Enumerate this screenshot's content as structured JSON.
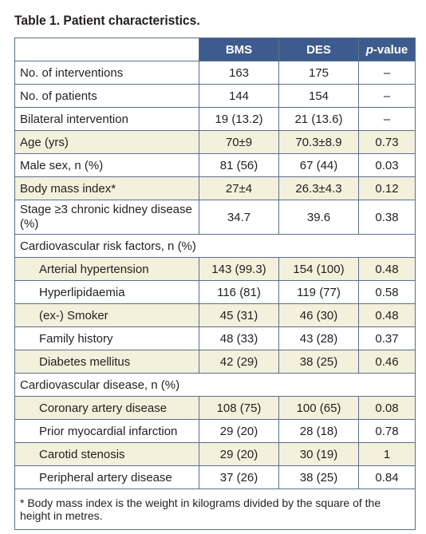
{
  "caption": "Table 1. Patient characteristics.",
  "columns": [
    "",
    "BMS",
    "DES",
    "p-value"
  ],
  "p_label_italic": "p",
  "p_label_rest": "-value",
  "rows": [
    {
      "label": "No. of interventions",
      "bms": "163",
      "des": "175",
      "p": "–"
    },
    {
      "label": "No. of patients",
      "bms": "144",
      "des": "154",
      "p": "–"
    },
    {
      "label": "Bilateral intervention",
      "bms": "19 (13.2)",
      "des": "21 (13.6)",
      "p": "–"
    },
    {
      "label": "Age (yrs)",
      "bms": "70±9",
      "des": "70.3±8.9",
      "p": "0.73"
    },
    {
      "label": "Male sex, n (%)",
      "bms": "81 (56)",
      "des": "67 (44)",
      "p": "0.03"
    },
    {
      "label": "Body mass index*",
      "bms": "27±4",
      "des": "26.3±4.3",
      "p": "0.12"
    },
    {
      "label": "Stage ≥3 chronic kidney disease (%)",
      "bms": "34.7",
      "des": "39.6",
      "p": "0.38"
    }
  ],
  "section_risk": "Cardiovascular risk factors, n (%)",
  "risk_rows": [
    {
      "label": "Arterial hypertension",
      "bms": "143 (99.3)",
      "des": "154 (100)",
      "p": "0.48"
    },
    {
      "label": "Hyperlipidaemia",
      "bms": "116 (81)",
      "des": "119 (77)",
      "p": "0.58"
    },
    {
      "label": "(ex-) Smoker",
      "bms": "45 (31)",
      "des": "46 (30)",
      "p": "0.48"
    },
    {
      "label": "Family history",
      "bms": "48 (33)",
      "des": "43 (28)",
      "p": "0.37"
    },
    {
      "label": "Diabetes mellitus",
      "bms": "42 (29)",
      "des": "38 (25)",
      "p": "0.46"
    }
  ],
  "section_disease": "Cardiovascular disease, n (%)",
  "disease_rows": [
    {
      "label": "Coronary artery disease",
      "bms": "108 (75)",
      "des": "100 (65)",
      "p": "0.08"
    },
    {
      "label": "Prior myocardial infarction",
      "bms": "29 (20)",
      "des": "28 (18)",
      "p": "0.78"
    },
    {
      "label": "Carotid stenosis",
      "bms": "29 (20)",
      "des": "30 (19)",
      "p": "1"
    },
    {
      "label": "Peripheral artery disease",
      "bms": "37 (26)",
      "des": "38 (25)",
      "p": "0.84"
    }
  ],
  "footnote": "* Body mass index is the weight in kilograms divided by the square of the height in metres.",
  "colors": {
    "header": "#3d5b8e",
    "shade": "#f3f0db",
    "border": "#5b6e8c"
  }
}
